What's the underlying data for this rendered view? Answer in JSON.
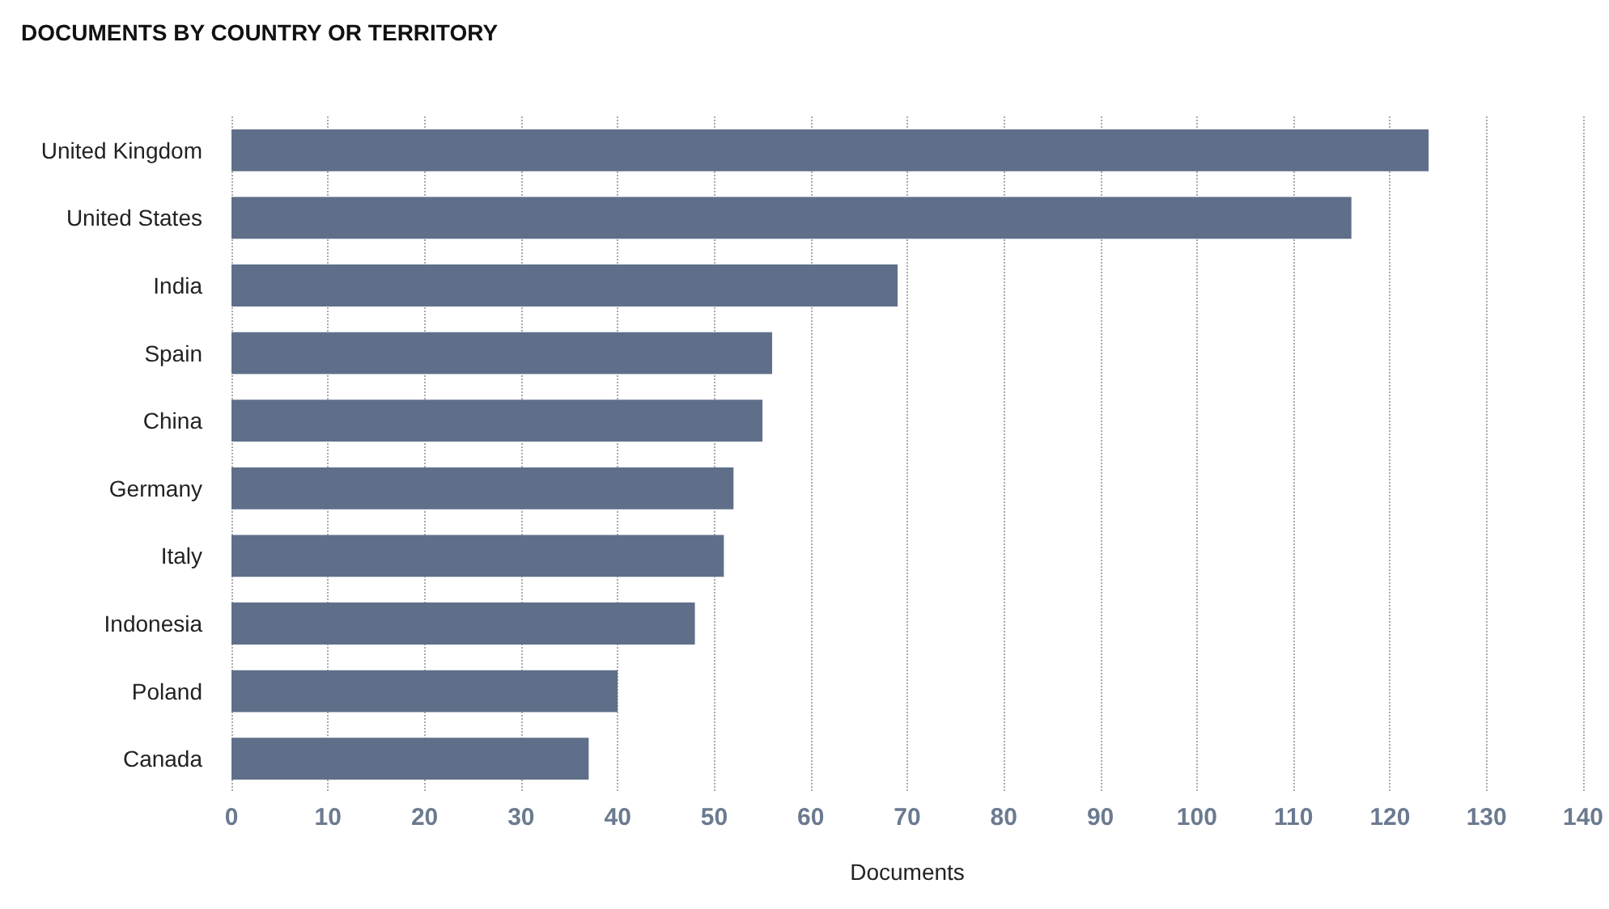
{
  "chart_data": {
    "type": "bar",
    "orientation": "horizontal",
    "title": "DOCUMENTS BY COUNTRY OR TERRITORY",
    "xlabel": "Documents",
    "categories": [
      "United Kingdom",
      "United States",
      "India",
      "Spain",
      "China",
      "Germany",
      "Italy",
      "Indonesia",
      "Poland",
      "Canada"
    ],
    "values": [
      124,
      116,
      69,
      56,
      55,
      52,
      51,
      48,
      40,
      37
    ],
    "color": "#5f6f89",
    "xlim": [
      0,
      140
    ],
    "xticks": [
      0,
      10,
      20,
      30,
      40,
      50,
      60,
      70,
      80,
      90,
      100,
      110,
      120,
      130,
      140
    ],
    "grid": "x"
  }
}
